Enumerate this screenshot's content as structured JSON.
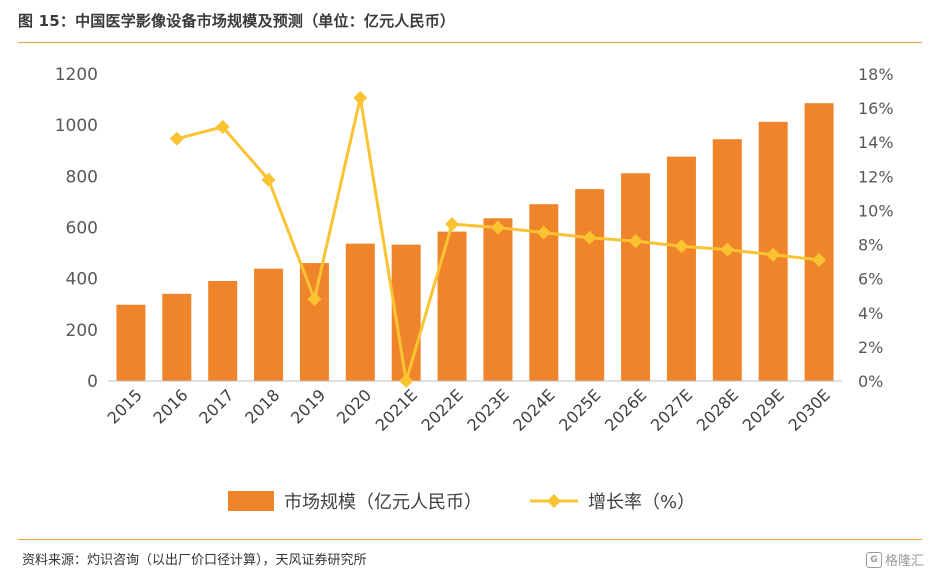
{
  "header": {
    "title": "图 15：中国医学影像设备市场规模及预测（单位：亿元人民币）"
  },
  "footer": {
    "source": "资料来源：灼识咨询（以出厂价口径计算），天风证券研究所",
    "watermark_label": "格隆汇",
    "watermark_icon": "G"
  },
  "chart_data": {
    "type": "bar",
    "categories": [
      "2015",
      "2016",
      "2017",
      "2018",
      "2019",
      "2020",
      "2021E",
      "2022E",
      "2023E",
      "2024E",
      "2025E",
      "2026E",
      "2027E",
      "2028E",
      "2029E",
      "2030E"
    ],
    "series": [
      {
        "name": "市场规模（亿元人民币）",
        "type": "bar",
        "axis": "left",
        "color": "#f0842a",
        "values": [
          298,
          341,
          391,
          439,
          461,
          537,
          533,
          584,
          636,
          691,
          750,
          812,
          877,
          945,
          1013,
          1086
        ]
      },
      {
        "name": "增长率（%）",
        "type": "line",
        "axis": "right",
        "color": "#fac332",
        "values": [
          null,
          14.2,
          14.9,
          11.8,
          4.8,
          16.6,
          0.0,
          9.2,
          9.0,
          8.7,
          8.4,
          8.2,
          7.9,
          7.7,
          7.4,
          7.1
        ]
      }
    ],
    "y_left": {
      "min": 0,
      "max": 1200,
      "ticks": [
        "0",
        "200",
        "400",
        "600",
        "800",
        "1000",
        "1200"
      ]
    },
    "y_right": {
      "min": 0,
      "max": 18,
      "ticks": [
        "0%",
        "2%",
        "4%",
        "6%",
        "8%",
        "10%",
        "12%",
        "14%",
        "16%",
        "18%"
      ]
    },
    "grid": false,
    "legend_position": "bottom"
  }
}
